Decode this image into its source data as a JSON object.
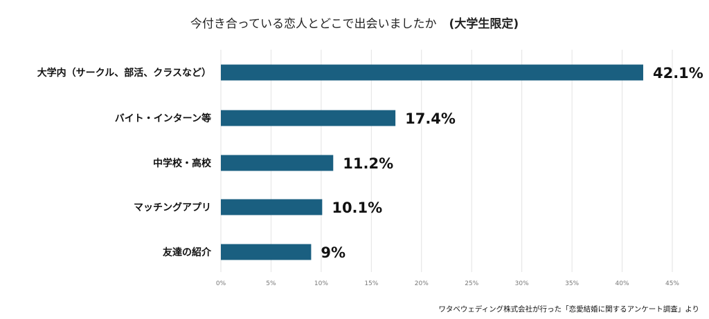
{
  "title": "今付き合っている恋人とどこで出会いましたか",
  "subtitle": "(大学生限定)",
  "source": "ワタベウェディング株式会社が行った「恋愛結婚に関するアンケート調査」より",
  "chart_data": {
    "type": "bar",
    "orientation": "horizontal",
    "title": "今付き合っている恋人とどこで出会いましたか　(大学生限定)",
    "categories": [
      "大学内（サークル、部活、クラスなど）",
      "バイト・インターン等",
      "中学校・高校",
      "マッチングアプリ",
      "友達の紹介"
    ],
    "values": [
      42.1,
      17.4,
      11.2,
      10.1,
      9
    ],
    "value_labels": [
      "42.1%",
      "17.4%",
      "11.2%",
      "10.1%",
      "9%"
    ],
    "xlim": [
      0,
      45
    ],
    "xticks": [
      0,
      5,
      10,
      15,
      20,
      25,
      30,
      35,
      40,
      45
    ],
    "xtick_labels": [
      "0%",
      "5%",
      "10%",
      "15%",
      "20%",
      "25%",
      "30%",
      "35%",
      "40%",
      "45%"
    ],
    "grid": true,
    "bar_color": "#1a5f80",
    "grid_color": "#e2e2e2"
  }
}
